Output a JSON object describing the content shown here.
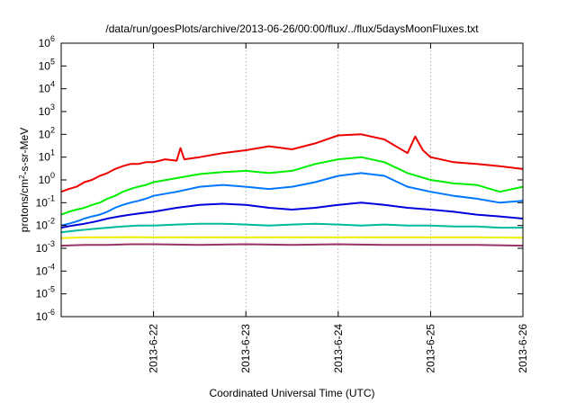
{
  "chart_data": {
    "type": "line",
    "title": "/data/run/goesPlots/archive/2013-06-26/00:00/flux/../flux/5daysMoonFluxes.txt",
    "xlabel": "Coordinated Universal Time (UTC)",
    "ylabel": {
      "prefix": "protons/cm",
      "sup": "2",
      "suffix": "-s-sr-MeV"
    },
    "yscale": "log",
    "ylim": [
      1e-06,
      1000000.0
    ],
    "xlim": [
      "2013-06-21T00:00",
      "2013-06-26T00:00"
    ],
    "x_ticks": [
      "2013-6-22",
      "2013-6-23",
      "2013-6-24",
      "2013-6-25",
      "2013-6-26"
    ],
    "x_tick_dates": [
      "2013-06-22T00:00",
      "2013-06-23T00:00",
      "2013-06-24T00:00",
      "2013-06-25T00:00",
      "2013-06-26T00:00"
    ],
    "y_ticks": [
      {
        "base": "10",
        "exp": "-6",
        "value": 1e-06
      },
      {
        "base": "10",
        "exp": "-5",
        "value": 1e-05
      },
      {
        "base": "10",
        "exp": "-4",
        "value": 0.0001
      },
      {
        "base": "10",
        "exp": "-3",
        "value": 0.001
      },
      {
        "base": "10",
        "exp": "-2",
        "value": 0.01
      },
      {
        "base": "10",
        "exp": "-1",
        "value": 0.1
      },
      {
        "base": "10",
        "exp": "0",
        "value": 1
      },
      {
        "base": "10",
        "exp": "1",
        "value": 10
      },
      {
        "base": "10",
        "exp": "2",
        "value": 100
      },
      {
        "base": "10",
        "exp": "3",
        "value": 1000
      },
      {
        "base": "10",
        "exp": "4",
        "value": 10000
      },
      {
        "base": "10",
        "exp": "5",
        "value": 100000
      },
      {
        "base": "10",
        "exp": "6",
        "value": 1000000
      }
    ],
    "grid": true,
    "legend": "none",
    "series": [
      {
        "color": "#ee0000",
        "x": [
          "2013-06-21T00:00",
          "2013-06-21T02:00",
          "2013-06-21T04:00",
          "2013-06-21T06:00",
          "2013-06-21T08:00",
          "2013-06-21T10:00",
          "2013-06-21T12:00",
          "2013-06-21T14:00",
          "2013-06-21T16:00",
          "2013-06-21T18:00",
          "2013-06-21T20:00",
          "2013-06-21T22:00",
          "2013-06-22T00:00",
          "2013-06-22T03:00",
          "2013-06-22T06:00",
          "2013-06-22T07:00",
          "2013-06-22T08:00",
          "2013-06-22T12:00",
          "2013-06-22T18:00",
          "2013-06-23T00:00",
          "2013-06-23T06:00",
          "2013-06-23T12:00",
          "2013-06-23T18:00",
          "2013-06-24T00:00",
          "2013-06-24T06:00",
          "2013-06-24T12:00",
          "2013-06-24T18:00",
          "2013-06-24T20:00",
          "2013-06-24T22:00",
          "2013-06-25T00:00",
          "2013-06-25T06:00",
          "2013-06-25T12:00",
          "2013-06-25T18:00",
          "2013-06-26T00:00"
        ],
        "y": [
          0.3,
          0.4,
          0.5,
          0.8,
          1,
          1.5,
          2,
          3,
          4,
          5,
          5,
          6,
          6,
          8,
          7,
          25,
          8,
          10,
          15,
          20,
          30,
          22,
          40,
          90,
          100,
          60,
          15,
          80,
          20,
          10,
          6,
          5,
          4,
          3
        ]
      },
      {
        "color": "#00ee00",
        "x": [
          "2013-06-21T00:00",
          "2013-06-21T02:00",
          "2013-06-21T04:00",
          "2013-06-21T06:00",
          "2013-06-21T08:00",
          "2013-06-21T10:00",
          "2013-06-21T12:00",
          "2013-06-21T14:00",
          "2013-06-21T16:00",
          "2013-06-21T18:00",
          "2013-06-21T20:00",
          "2013-06-21T22:00",
          "2013-06-22T00:00",
          "2013-06-22T06:00",
          "2013-06-22T12:00",
          "2013-06-22T18:00",
          "2013-06-23T00:00",
          "2013-06-23T06:00",
          "2013-06-23T12:00",
          "2013-06-23T18:00",
          "2013-06-24T00:00",
          "2013-06-24T06:00",
          "2013-06-24T12:00",
          "2013-06-24T18:00",
          "2013-06-25T00:00",
          "2013-06-25T06:00",
          "2013-06-25T12:00",
          "2013-06-25T18:00",
          "2013-06-26T00:00"
        ],
        "y": [
          0.03,
          0.04,
          0.05,
          0.06,
          0.08,
          0.1,
          0.15,
          0.2,
          0.3,
          0.4,
          0.5,
          0.6,
          0.8,
          1.2,
          1.8,
          2.2,
          2.5,
          2,
          2.5,
          5,
          8,
          10,
          6,
          2,
          1,
          0.7,
          0.6,
          0.3,
          0.5
        ]
      },
      {
        "color": "#0077ff",
        "x": [
          "2013-06-21T00:00",
          "2013-06-21T02:00",
          "2013-06-21T04:00",
          "2013-06-21T06:00",
          "2013-06-21T08:00",
          "2013-06-21T10:00",
          "2013-06-21T12:00",
          "2013-06-21T14:00",
          "2013-06-21T16:00",
          "2013-06-21T18:00",
          "2013-06-21T20:00",
          "2013-06-21T22:00",
          "2013-06-22T00:00",
          "2013-06-22T06:00",
          "2013-06-22T12:00",
          "2013-06-22T18:00",
          "2013-06-23T00:00",
          "2013-06-23T06:00",
          "2013-06-23T12:00",
          "2013-06-23T18:00",
          "2013-06-24T00:00",
          "2013-06-24T06:00",
          "2013-06-24T12:00",
          "2013-06-24T18:00",
          "2013-06-25T00:00",
          "2013-06-25T06:00",
          "2013-06-25T12:00",
          "2013-06-25T18:00",
          "2013-06-26T00:00"
        ],
        "y": [
          0.01,
          0.012,
          0.015,
          0.02,
          0.025,
          0.03,
          0.04,
          0.06,
          0.08,
          0.1,
          0.12,
          0.15,
          0.2,
          0.3,
          0.5,
          0.6,
          0.5,
          0.4,
          0.5,
          0.8,
          1.5,
          2,
          1.5,
          0.5,
          0.3,
          0.2,
          0.15,
          0.1,
          0.12
        ]
      },
      {
        "color": "#0000dd",
        "x": [
          "2013-06-21T00:00",
          "2013-06-21T03:00",
          "2013-06-21T06:00",
          "2013-06-21T09:00",
          "2013-06-21T12:00",
          "2013-06-21T15:00",
          "2013-06-21T18:00",
          "2013-06-21T21:00",
          "2013-06-22T00:00",
          "2013-06-22T06:00",
          "2013-06-22T12:00",
          "2013-06-22T18:00",
          "2013-06-23T00:00",
          "2013-06-23T06:00",
          "2013-06-23T12:00",
          "2013-06-23T18:00",
          "2013-06-24T00:00",
          "2013-06-24T06:00",
          "2013-06-24T12:00",
          "2013-06-24T18:00",
          "2013-06-25T00:00",
          "2013-06-25T06:00",
          "2013-06-25T12:00",
          "2013-06-25T18:00",
          "2013-06-26T00:00"
        ],
        "y": [
          0.008,
          0.01,
          0.012,
          0.015,
          0.02,
          0.025,
          0.03,
          0.035,
          0.04,
          0.06,
          0.08,
          0.09,
          0.08,
          0.06,
          0.05,
          0.06,
          0.08,
          0.1,
          0.08,
          0.06,
          0.05,
          0.04,
          0.03,
          0.025,
          0.02
        ]
      },
      {
        "color": "#00bb99",
        "x": [
          "2013-06-21T00:00",
          "2013-06-21T04:00",
          "2013-06-21T08:00",
          "2013-06-21T12:00",
          "2013-06-21T16:00",
          "2013-06-21T20:00",
          "2013-06-22T00:00",
          "2013-06-22T06:00",
          "2013-06-22T12:00",
          "2013-06-22T18:00",
          "2013-06-23T00:00",
          "2013-06-23T06:00",
          "2013-06-23T12:00",
          "2013-06-23T18:00",
          "2013-06-24T00:00",
          "2013-06-24T06:00",
          "2013-06-24T12:00",
          "2013-06-24T18:00",
          "2013-06-25T00:00",
          "2013-06-25T06:00",
          "2013-06-25T12:00",
          "2013-06-25T18:00",
          "2013-06-26T00:00"
        ],
        "y": [
          0.005,
          0.006,
          0.007,
          0.008,
          0.009,
          0.01,
          0.01,
          0.011,
          0.012,
          0.012,
          0.011,
          0.01,
          0.011,
          0.012,
          0.011,
          0.01,
          0.011,
          0.01,
          0.01,
          0.009,
          0.009,
          0.008,
          0.008
        ]
      },
      {
        "color": "#eeee00",
        "x": [
          "2013-06-21T00:00",
          "2013-06-21T06:00",
          "2013-06-21T12:00",
          "2013-06-21T18:00",
          "2013-06-22T00:00",
          "2013-06-22T12:00",
          "2013-06-23T00:00",
          "2013-06-23T12:00",
          "2013-06-24T00:00",
          "2013-06-24T12:00",
          "2013-06-25T00:00",
          "2013-06-25T12:00",
          "2013-06-26T00:00"
        ],
        "y": [
          0.0028,
          0.003,
          0.003,
          0.0031,
          0.003,
          0.003,
          0.003,
          0.003,
          0.003,
          0.003,
          0.003,
          0.003,
          0.0029
        ]
      },
      {
        "color": "#993366",
        "x": [
          "2013-06-21T00:00",
          "2013-06-21T06:00",
          "2013-06-21T12:00",
          "2013-06-21T18:00",
          "2013-06-22T00:00",
          "2013-06-22T12:00",
          "2013-06-23T00:00",
          "2013-06-23T12:00",
          "2013-06-24T00:00",
          "2013-06-24T12:00",
          "2013-06-25T00:00",
          "2013-06-25T12:00",
          "2013-06-26T00:00"
        ],
        "y": [
          0.0013,
          0.0014,
          0.0014,
          0.0015,
          0.0015,
          0.0014,
          0.0015,
          0.0014,
          0.0015,
          0.0014,
          0.0014,
          0.0014,
          0.0013
        ]
      }
    ]
  }
}
